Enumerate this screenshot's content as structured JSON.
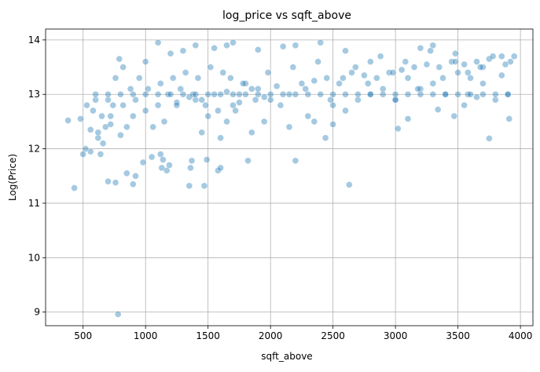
{
  "chart_data": {
    "type": "scatter",
    "title": "log_price vs sqft_above",
    "xlabel": "sqft_above",
    "ylabel": "Log(Price)",
    "xlim": [
      200,
      4100
    ],
    "ylim": [
      8.75,
      14.2
    ],
    "xticks": [
      500,
      1000,
      1500,
      2000,
      2500,
      3000,
      3500,
      4000
    ],
    "yticks": [
      9,
      10,
      11,
      12,
      13,
      14
    ],
    "grid": true,
    "point_color": "#1f77b4",
    "point_alpha": 0.4,
    "x": [
      780,
      430,
      380,
      560,
      700,
      640,
      760,
      850,
      900,
      920,
      980,
      1050,
      1120,
      1130,
      1140,
      1170,
      1190,
      1350,
      1360,
      1370,
      1470,
      1490,
      1580,
      1600,
      1820,
      2200,
      2630,
      2440,
      2500,
      3020,
      3470,
      3750,
      3910,
      3340,
      3000,
      3100,
      3550,
      3580,
      3800,
      3650,
      3700,
      3850,
      3900,
      3950,
      3480,
      3300,
      3200,
      2800,
      2600,
      2200,
      2400,
      2100,
      1900,
      1700,
      1650,
      1550,
      1400,
      1300,
      1200,
      1100,
      1000,
      950,
      880,
      820,
      790,
      760,
      740,
      700,
      680,
      650,
      620,
      600,
      580,
      560,
      530,
      520,
      480,
      500,
      620,
      660,
      720,
      800,
      850,
      900,
      1000,
      1100,
      1250,
      1350,
      1450,
      1550,
      1650,
      1750,
      1850,
      1950,
      2050,
      2150,
      2250,
      2350,
      2450,
      2550,
      2650,
      2750,
      2850,
      2950,
      3050,
      3150,
      3250,
      3350,
      3450,
      3550,
      3650,
      3750,
      3850,
      3920,
      1600,
      1650,
      1700,
      1750,
      1800,
      1900,
      2000,
      1450,
      1500,
      1400,
      1250,
      1150,
      1060,
      2300,
      2500,
      2700,
      2900,
      3100,
      3300,
      3500,
      3700,
      3600,
      3400,
      3200,
      3000,
      2800,
      2600,
      2350,
      2150,
      1950,
      1850,
      1720,
      1620,
      1520,
      1420,
      1320,
      1220,
      1120,
      1020,
      920,
      820,
      720,
      1180,
      1280,
      1380,
      1480,
      1580,
      1680,
      1780,
      1880,
      1980,
      2080,
      2180,
      2280,
      2380,
      2480,
      2580,
      2680,
      2780,
      2880,
      2980,
      3080,
      3180,
      3280,
      3380,
      3480,
      3580,
      3680,
      3780,
      3880,
      1700,
      1800,
      1900,
      2000,
      2100,
      2200,
      2300,
      2400,
      2500,
      2600,
      2700,
      2800,
      2900,
      3000,
      3100,
      3200,
      3300,
      3400,
      3500,
      3600,
      3700,
      3800,
      3900,
      1600,
      1500,
      1400,
      1300,
      1200,
      1100,
      1000,
      900,
      800,
      700,
      600
    ],
    "y": [
      8.96,
      11.28,
      12.52,
      11.95,
      11.4,
      11.9,
      11.38,
      11.55,
      11.35,
      11.5,
      11.75,
      11.85,
      11.9,
      11.65,
      11.8,
      11.6,
      11.7,
      11.32,
      11.65,
      11.78,
      11.32,
      11.8,
      11.6,
      11.65,
      11.78,
      11.78,
      11.34,
      12.2,
      12.45,
      12.37,
      12.6,
      12.19,
      12.55,
      12.72,
      12.9,
      12.55,
      12.8,
      13.0,
      12.9,
      12.95,
      13.2,
      13.35,
      13.0,
      13.7,
      13.75,
      13.9,
      13.85,
      13.6,
      13.8,
      13.9,
      13.95,
      13.88,
      13.82,
      13.95,
      13.9,
      13.85,
      13.9,
      13.8,
      13.75,
      13.95,
      13.6,
      13.3,
      13.1,
      13.5,
      13.65,
      13.3,
      12.8,
      12.9,
      12.4,
      12.6,
      12.2,
      12.9,
      12.7,
      12.35,
      12.8,
      12.0,
      12.55,
      11.9,
      12.3,
      12.1,
      12.45,
      12.25,
      12.4,
      12.6,
      12.7,
      12.8,
      12.85,
      12.95,
      12.9,
      13.0,
      13.05,
      12.85,
      13.1,
      12.95,
      13.15,
      13.0,
      13.2,
      13.25,
      13.3,
      13.2,
      13.4,
      13.35,
      13.3,
      13.4,
      13.45,
      13.5,
      13.55,
      13.5,
      13.6,
      13.55,
      13.6,
      13.65,
      13.7,
      13.6,
      12.2,
      12.5,
      12.8,
      13.0,
      13.2,
      13.1,
      12.9,
      12.3,
      12.6,
      12.9,
      12.8,
      12.5,
      12.4,
      12.6,
      12.8,
      12.9,
      13.1,
      13.3,
      13.2,
      13.4,
      13.5,
      13.3,
      13.0,
      13.1,
      12.9,
      13.0,
      12.7,
      12.5,
      12.4,
      12.5,
      12.3,
      12.7,
      13.4,
      13.5,
      13.3,
      13.4,
      13.3,
      13.2,
      13.1,
      12.9,
      12.8,
      12.6,
      13.0,
      13.1,
      13.0,
      12.8,
      12.7,
      13.3,
      13.2,
      12.9,
      13.4,
      12.8,
      13.5,
      13.1,
      13.6,
      12.9,
      13.3,
      13.5,
      13.2,
      13.7,
      13.4,
      13.6,
      13.1,
      13.8,
      13.3,
      13.6,
      13.4,
      13.5,
      13.7,
      13.55,
      13.0,
      13.0,
      13.0,
      13.0,
      13.0,
      13.0,
      13.0,
      13.0,
      13.0,
      13.0,
      13.0,
      13.0,
      13.0,
      13.0,
      13.0,
      13.0,
      13.0,
      13.0,
      13.0,
      13.0,
      13.0,
      13.0,
      13.0,
      13.0,
      13.0,
      13.0,
      13.0,
      13.0,
      13.0,
      13.0,
      13.0,
      13.0,
      13.0,
      13.0
    ]
  }
}
